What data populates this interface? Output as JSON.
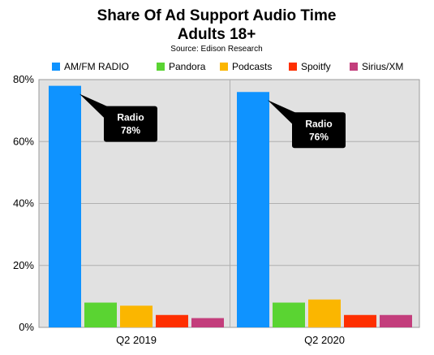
{
  "chart_data": {
    "type": "bar",
    "title": "Share Of Ad Support Audio Time",
    "subtitle": "Adults 18+",
    "source": "Source: Edison Research",
    "categories": [
      "Q2 2019",
      "Q2 2020"
    ],
    "series": [
      {
        "name": "AM/FM RADIO",
        "color": "#0f93ff",
        "values": [
          78,
          76
        ]
      },
      {
        "name": "Pandora",
        "color": "#5ad432",
        "values": [
          8,
          8
        ]
      },
      {
        "name": "Podcasts",
        "color": "#fbb600",
        "values": [
          7,
          9
        ]
      },
      {
        "name": "Spoitfy",
        "color": "#fe2f00",
        "values": [
          4,
          4
        ]
      },
      {
        "name": "Sirius/XM",
        "color": "#c33e7c",
        "values": [
          3,
          4
        ]
      }
    ],
    "y_ticks": [
      "0%",
      "20%",
      "40%",
      "60%",
      "80%"
    ],
    "y_tick_values": [
      0,
      20,
      40,
      60,
      80
    ],
    "ylim": [
      0,
      80
    ],
    "grid": true,
    "legend_position": "top",
    "plot_background": "#e1e1e1",
    "annotations": [
      {
        "line1": "Radio",
        "line2": "78%",
        "category": "Q2 2019",
        "series": "AM/FM RADIO"
      },
      {
        "line1": "Radio",
        "line2": "76%",
        "category": "Q2 2020",
        "series": "AM/FM RADIO"
      }
    ]
  }
}
